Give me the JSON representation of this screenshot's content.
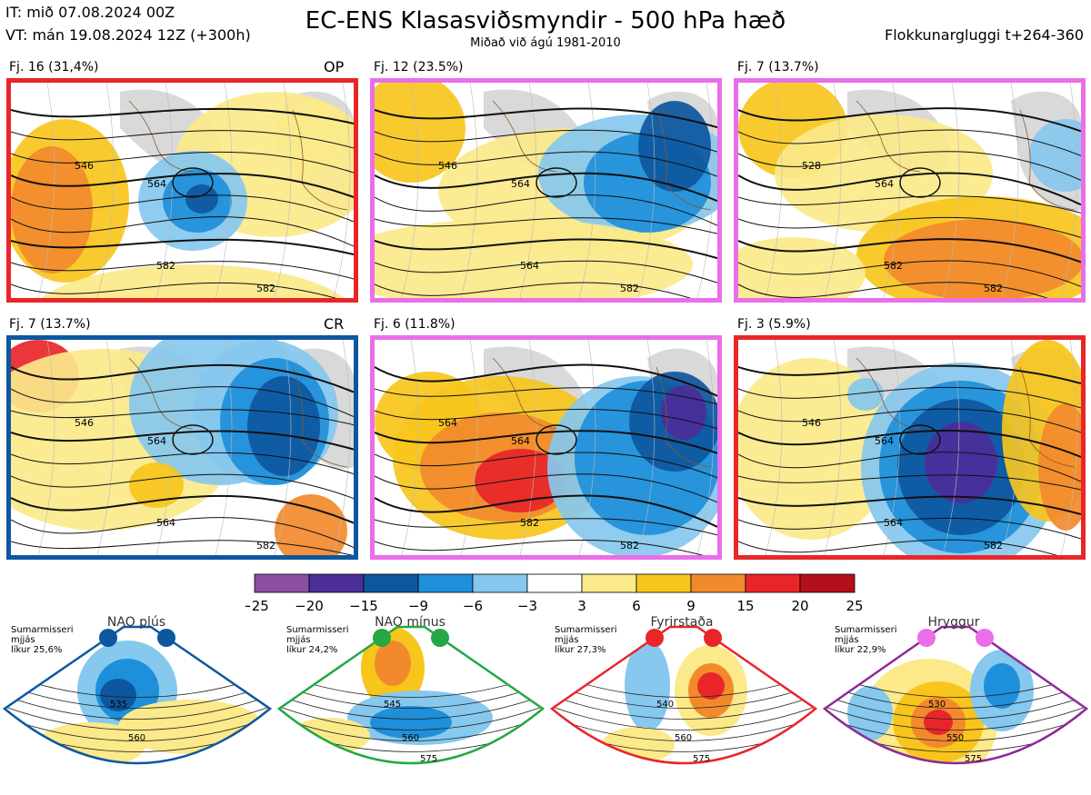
{
  "header": {
    "it": "IT: mið 07.08.2024 00Z",
    "vt": "VT: mán 19.08.2024 12Z  (+300h)",
    "title": "EC-ENS Klasasviðsmyndir - 500 hPa hæð",
    "subtitle": "Miðað við ágú 1981-2010",
    "window": "Flokkunargluggi t+264-360"
  },
  "panels": [
    {
      "label": "Fj. 16 (31,4%)",
      "tag": "OP",
      "border": "#e8262a",
      "contours": [
        "546",
        "564",
        "582",
        "582"
      ]
    },
    {
      "label": "Fj. 12 (23.5%)",
      "tag": "",
      "border": "#ea6ee8",
      "contours": [
        "546",
        "564",
        "564",
        "582"
      ]
    },
    {
      "label": "Fj. 7 (13.7%)",
      "tag": "",
      "border": "#ea6ee8",
      "contours": [
        "528",
        "564",
        "582",
        "582"
      ]
    },
    {
      "label": "Fj. 7 (13.7%)",
      "tag": "CR",
      "border": "#0d57a0",
      "contours": [
        "546",
        "564",
        "564",
        "582"
      ]
    },
    {
      "label": "Fj. 6 (11.8%)",
      "tag": "",
      "border": "#ea6ee8",
      "contours": [
        "564",
        "564",
        "582",
        "582"
      ]
    },
    {
      "label": "Fj. 3 (5.9%)",
      "tag": "",
      "border": "#e8262a",
      "contours": [
        "546",
        "564",
        "564",
        "582"
      ]
    }
  ],
  "colorbar": {
    "ticks": [
      "−25",
      "−20",
      "−15",
      "−9",
      "−6",
      "−3",
      "3",
      "6",
      "9",
      "15",
      "20",
      "25"
    ],
    "colors": [
      "#8a4fa3",
      "#4b2e9a",
      "#0d57a0",
      "#1e8fda",
      "#86c8ee",
      "#ffffff",
      "#fbe98a",
      "#f7c51c",
      "#f28a2c",
      "#e8262a",
      "#b3101b"
    ]
  },
  "regimes": [
    {
      "name": "NAO plús",
      "line1": "Sumarmisseri",
      "line2": "mjjás",
      "line3": "líkur 25,6%",
      "dot_color": "#0d57a0",
      "frame_color": "#0d57a0",
      "contours": [
        "535",
        "560"
      ]
    },
    {
      "name": "NAO mínus",
      "line1": "Sumarmisseri",
      "line2": "mjjás",
      "line3": "líkur 24,2%",
      "dot_color": "#23a843",
      "frame_color": "#23a843",
      "contours": [
        "545",
        "560",
        "575"
      ]
    },
    {
      "name": "Fyrirstaða",
      "line1": "Sumarmisseri",
      "line2": "mjjás",
      "line3": "líkur 27,3%",
      "dot_color": "#e8262a",
      "frame_color": "#e8262a",
      "contours": [
        "540",
        "560",
        "575"
      ]
    },
    {
      "name": "Hryggur",
      "line1": "Sumarmisseri",
      "line2": "mjjás",
      "line3": "líkur 22,9%",
      "dot_color": "#ea6ee8",
      "frame_color": "#8e2a9a",
      "contours": [
        "530",
        "550",
        "575"
      ]
    }
  ]
}
